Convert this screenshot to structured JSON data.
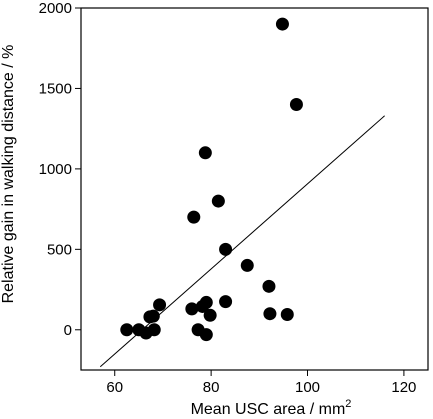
{
  "chart_data": {
    "type": "scatter",
    "title": "",
    "xlabel": "Mean USC area / mm",
    "xlabel_superscript": "2",
    "ylabel": "Relative gain in walking distance / %",
    "xlim": [
      53,
      125
    ],
    "ylim": [
      -250,
      2000
    ],
    "xticks": [
      60,
      80,
      100,
      120
    ],
    "yticks": [
      0,
      500,
      1000,
      1500,
      2000
    ],
    "grid": false,
    "legend": "none",
    "point_color": "#000000",
    "series": [
      {
        "points": [
          [
            62.5,
            0
          ],
          [
            65,
            0
          ],
          [
            66.5,
            -20
          ],
          [
            67.3,
            80
          ],
          [
            68,
            85
          ],
          [
            68.2,
            0
          ],
          [
            69.3,
            155
          ],
          [
            76,
            130
          ],
          [
            76.4,
            700
          ],
          [
            77.3,
            0
          ],
          [
            78.2,
            145
          ],
          [
            78.8,
            1100
          ],
          [
            79,
            170
          ],
          [
            79,
            -30
          ],
          [
            79.8,
            90
          ],
          [
            81.5,
            800
          ],
          [
            83,
            500
          ],
          [
            83,
            175
          ],
          [
            87.5,
            400
          ],
          [
            92,
            270
          ],
          [
            92.2,
            100
          ],
          [
            94.8,
            1900
          ],
          [
            95.8,
            95
          ],
          [
            97.7,
            1400
          ]
        ]
      }
    ],
    "trendline": {
      "x": [
        57,
        116
      ],
      "y": [
        -230,
        1330
      ]
    }
  }
}
